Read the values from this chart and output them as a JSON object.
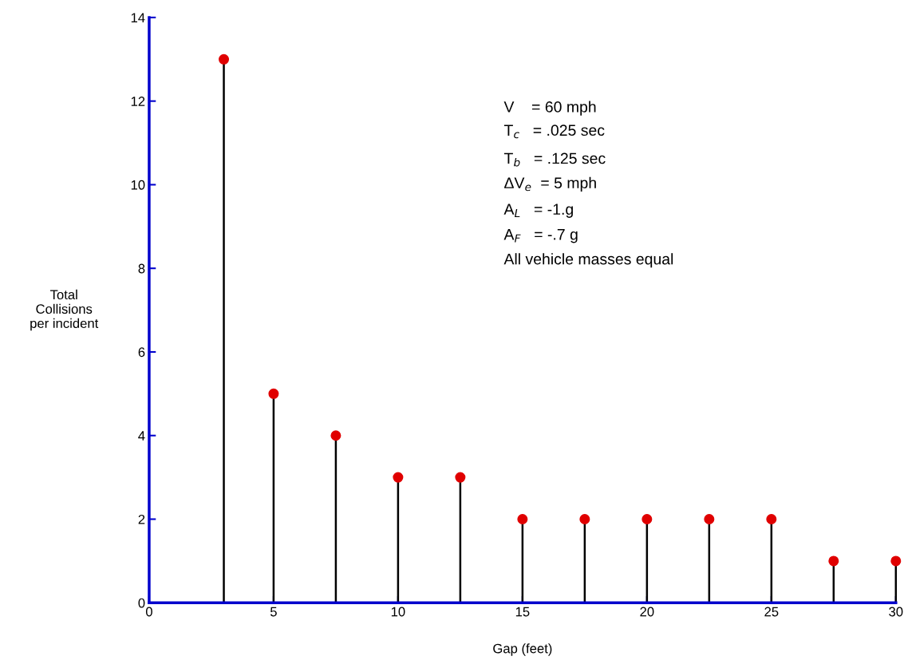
{
  "chart_data": {
    "type": "lollipop",
    "xlabel": "Gap (feet)",
    "ylabel": "Total\nCollisions\nper incident",
    "x": [
      3,
      5,
      7.5,
      10,
      12.5,
      15,
      17.5,
      20,
      22.5,
      25,
      27.5,
      30
    ],
    "series": [
      {
        "color": "#e00000",
        "values": [
          13,
          5,
          4,
          3,
          3,
          2,
          2,
          2,
          2,
          2,
          1,
          1
        ]
      }
    ],
    "xlim": [
      0,
      30
    ],
    "xticks": [
      0,
      5,
      10,
      15,
      20,
      25,
      30
    ],
    "ylim": [
      0,
      14
    ],
    "yticks": [
      0,
      2,
      4,
      6,
      8,
      10,
      12,
      14
    ],
    "marker": "circle",
    "grid": false,
    "legend": false,
    "annotations": [
      "V    = 60 mph",
      "T$_{c}$   = .025 sec",
      "T$_{b}$   = .125 sec",
      "ΔV$_{e}$  = 5 mph",
      "A$_{L}$   = -1.g",
      "A$_{F}$   = -.7 g",
      "All vehicle masses equal"
    ]
  }
}
